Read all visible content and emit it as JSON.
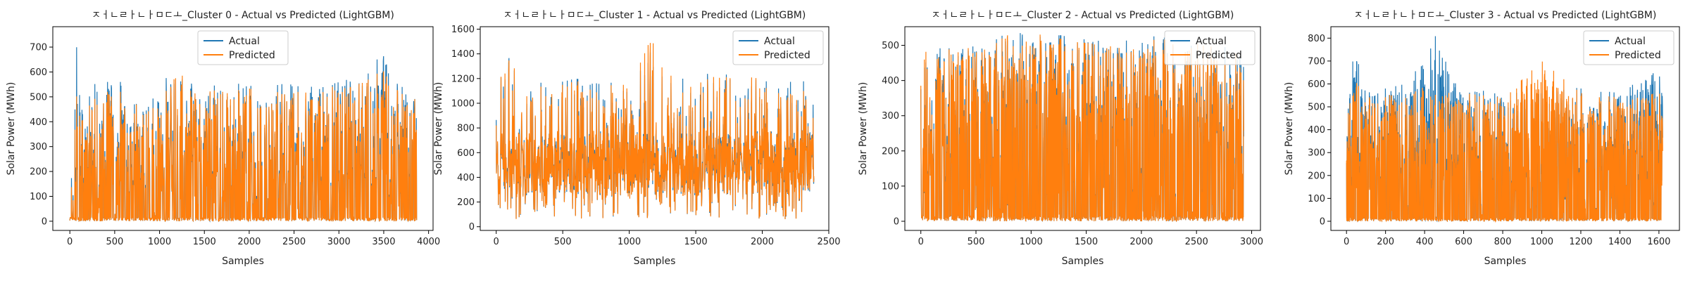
{
  "chart_data": [
    {
      "type": "line",
      "title": "ㅈㅓㄴㄹㅏㄴㅏㅁㄷㅗ_Cluster 0 - Actual vs Predicted (LightGBM)",
      "xlabel": "Samples",
      "ylabel": "Solar Power (MWh)",
      "xlim": [
        -190,
        4050
      ],
      "ylim": [
        -37,
        782
      ],
      "xticks": [
        0,
        500,
        1000,
        1500,
        2000,
        2500,
        3000,
        3500,
        4000
      ],
      "yticks": [
        0,
        100,
        200,
        300,
        400,
        500,
        600,
        700
      ],
      "n_samples": 3870,
      "legend": "upper center",
      "series": [
        {
          "name": "Actual",
          "color": "#1f77b4",
          "envelope": [
            [
              0,
              200
            ],
            [
              60,
              740
            ],
            [
              150,
              500
            ],
            [
              300,
              560
            ],
            [
              600,
              560
            ],
            [
              850,
              450
            ],
            [
              1100,
              590
            ],
            [
              1200,
              620
            ],
            [
              1500,
              540
            ],
            [
              1900,
              560
            ],
            [
              2200,
              540
            ],
            [
              2500,
              560
            ],
            [
              2800,
              530
            ],
            [
              3000,
              610
            ],
            [
              3100,
              560
            ],
            [
              3300,
              570
            ],
            [
              3470,
              720
            ],
            [
              3600,
              560
            ],
            [
              3870,
              520
            ]
          ]
        },
        {
          "name": "Predicted",
          "color": "#ff7f0e",
          "envelope": [
            [
              0,
              180
            ],
            [
              60,
              550
            ],
            [
              150,
              480
            ],
            [
              300,
              520
            ],
            [
              600,
              520
            ],
            [
              850,
              430
            ],
            [
              1100,
              560
            ],
            [
              1200,
              600
            ],
            [
              1500,
              520
            ],
            [
              1900,
              540
            ],
            [
              2200,
              520
            ],
            [
              2500,
              540
            ],
            [
              2800,
              510
            ],
            [
              3000,
              590
            ],
            [
              3100,
              540
            ],
            [
              3300,
              560
            ],
            [
              3470,
              620
            ],
            [
              3600,
              540
            ],
            [
              3870,
              500
            ]
          ]
        }
      ]
    },
    {
      "type": "line",
      "title": "ㅈㅓㄴㄹㅏㄴㅏㅁㄷㅗ_Cluster 1 - Actual vs Predicted (LightGBM)",
      "xlabel": "Samples",
      "ylabel": "Solar Power (MWh)",
      "xlim": [
        -120,
        2500
      ],
      "ylim": [
        -30,
        1620
      ],
      "xticks": [
        0,
        500,
        1000,
        1500,
        2000,
        2500
      ],
      "yticks": [
        0,
        200,
        400,
        600,
        800,
        1000,
        1200,
        1400,
        1600
      ],
      "n_samples": 2390,
      "legend": "upper right",
      "base_range": [
        250,
        750
      ],
      "series": [
        {
          "name": "Actual",
          "color": "#1f77b4",
          "envelope": [
            [
              0,
              900
            ],
            [
              50,
              1440
            ],
            [
              200,
              1200
            ],
            [
              400,
              1150
            ],
            [
              600,
              1200
            ],
            [
              800,
              1150
            ],
            [
              1000,
              1200
            ],
            [
              1150,
              1430
            ],
            [
              1300,
              1250
            ],
            [
              1500,
              1150
            ],
            [
              1700,
              1350
            ],
            [
              2000,
              1200
            ],
            [
              2390,
              1180
            ]
          ]
        },
        {
          "name": "Predicted",
          "color": "#ff7f0e",
          "envelope": [
            [
              0,
              880
            ],
            [
              50,
              1420
            ],
            [
              200,
              1180
            ],
            [
              400,
              1120
            ],
            [
              600,
              1180
            ],
            [
              800,
              1130
            ],
            [
              1000,
              1180
            ],
            [
              1150,
              1550
            ],
            [
              1300,
              1230
            ],
            [
              1500,
              1130
            ],
            [
              1700,
              1330
            ],
            [
              2000,
              1180
            ],
            [
              2390,
              1160
            ]
          ]
        }
      ]
    },
    {
      "type": "line",
      "title": "ㅈㅓㄴㄹㅏㄴㅏㅁㄷㅗ_Cluster 2 - Actual vs Predicted (LightGBM)",
      "xlabel": "Samples",
      "ylabel": "Solar Power (MWh)",
      "xlim": [
        -145,
        3080
      ],
      "ylim": [
        -26,
        553
      ],
      "xticks": [
        0,
        500,
        1000,
        1500,
        2000,
        2500,
        3000
      ],
      "yticks": [
        0,
        100,
        200,
        300,
        400,
        500
      ],
      "n_samples": 2930,
      "legend": "upper right",
      "series": [
        {
          "name": "Actual",
          "color": "#1f77b4",
          "envelope": [
            [
              0,
              490
            ],
            [
              300,
              500
            ],
            [
              600,
              500
            ],
            [
              850,
              550
            ],
            [
              1100,
              540
            ],
            [
              1400,
              520
            ],
            [
              1700,
              510
            ],
            [
              2000,
              520
            ],
            [
              2200,
              530
            ],
            [
              2500,
              520
            ],
            [
              2700,
              500
            ],
            [
              2930,
              480
            ]
          ]
        },
        {
          "name": "Predicted",
          "color": "#ff7f0e",
          "envelope": [
            [
              0,
              480
            ],
            [
              300,
              490
            ],
            [
              600,
              495
            ],
            [
              850,
              540
            ],
            [
              1100,
              530
            ],
            [
              1400,
              510
            ],
            [
              1700,
              500
            ],
            [
              2000,
              510
            ],
            [
              2200,
              520
            ],
            [
              2500,
              510
            ],
            [
              2700,
              490
            ],
            [
              2930,
              470
            ]
          ]
        }
      ]
    },
    {
      "type": "line",
      "title": "ㅈㅓㄴㄹㅏㄴㅏㅁㄷㅗ_Cluster 3 - Actual vs Predicted (LightGBM)",
      "xlabel": "Samples",
      "ylabel": "Solar Power (MWh)",
      "xlim": [
        -80,
        1705
      ],
      "ylim": [
        -40,
        850
      ],
      "xticks": [
        0,
        200,
        400,
        600,
        800,
        1000,
        1200,
        1400,
        1600
      ],
      "yticks": [
        0,
        100,
        200,
        300,
        400,
        500,
        600,
        700,
        800
      ],
      "n_samples": 1620,
      "legend": "upper right",
      "series": [
        {
          "name": "Actual",
          "color": "#1f77b4",
          "envelope": [
            [
              0,
              450
            ],
            [
              40,
              760
            ],
            [
              100,
              560
            ],
            [
              300,
              600
            ],
            [
              455,
              820
            ],
            [
              600,
              580
            ],
            [
              800,
              560
            ],
            [
              1000,
              600
            ],
            [
              1200,
              580
            ],
            [
              1400,
              560
            ],
            [
              1600,
              670
            ],
            [
              1620,
              620
            ]
          ]
        },
        {
          "name": "Predicted",
          "color": "#ff7f0e",
          "envelope": [
            [
              0,
              430
            ],
            [
              40,
              620
            ],
            [
              100,
              540
            ],
            [
              300,
              560
            ],
            [
              455,
              600
            ],
            [
              600,
              560
            ],
            [
              800,
              540
            ],
            [
              1000,
              700
            ],
            [
              1200,
              560
            ],
            [
              1400,
              540
            ],
            [
              1600,
              560
            ],
            [
              1620,
              540
            ]
          ]
        }
      ]
    }
  ]
}
